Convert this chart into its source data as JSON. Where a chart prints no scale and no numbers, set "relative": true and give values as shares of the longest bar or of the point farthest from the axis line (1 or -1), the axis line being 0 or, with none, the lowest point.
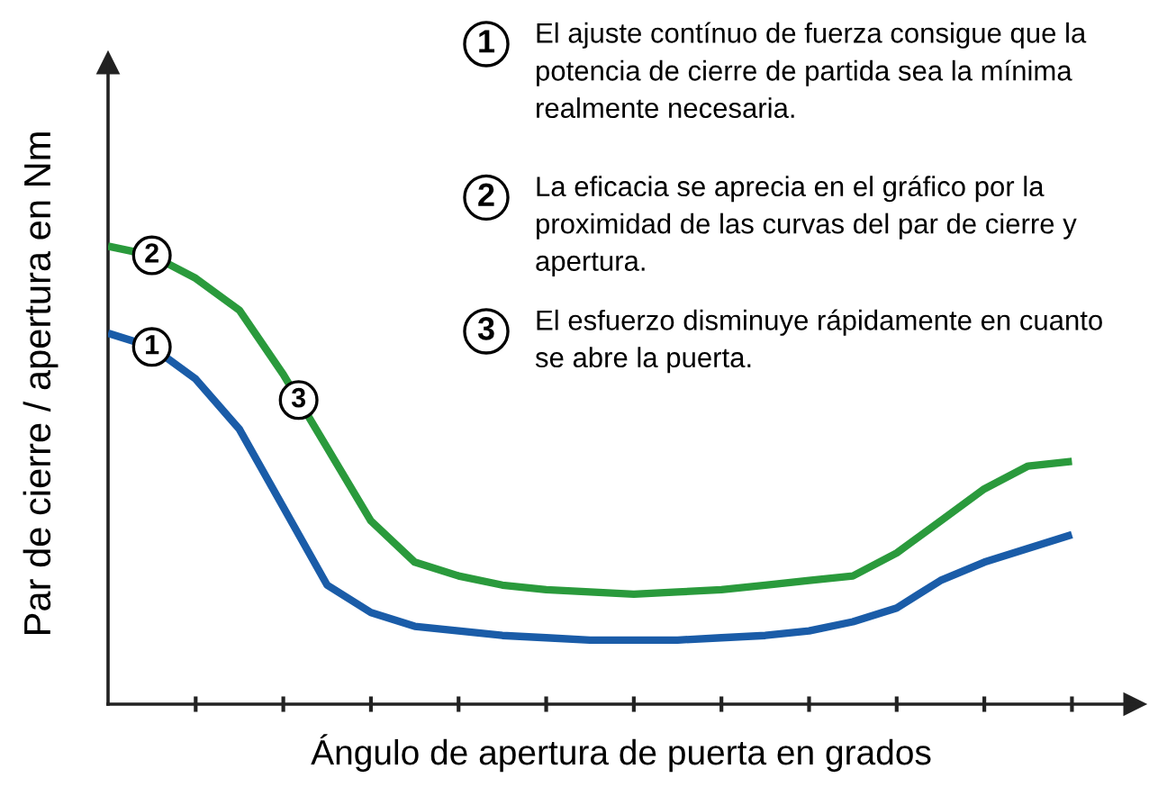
{
  "chart_data": {
    "type": "line",
    "relative": true,
    "xlabel": "Ángulo de apertura de puerta en grados",
    "ylabel": "Par de cierre / apertura en Nm",
    "categories": [
      null,
      null,
      null,
      null,
      null,
      null,
      null,
      null,
      null,
      null,
      null,
      null,
      null,
      null,
      null,
      null,
      null,
      null,
      null,
      null,
      null,
      null,
      null
    ],
    "series": [
      {
        "color": "#2a9a3c",
        "values": [
          1,
          0.98,
          0.93,
          0.86,
          0.72,
          0.56,
          0.4,
          0.31,
          0.28,
          0.26,
          0.25,
          0.245,
          0.24,
          0.245,
          0.25,
          0.26,
          0.27,
          0.28,
          0.33,
          0.4,
          0.47,
          0.52,
          0.53
        ]
      },
      {
        "color": "#1a5ca8",
        "values": [
          0.81,
          0.78,
          0.71,
          0.6,
          0.43,
          0.26,
          0.2,
          0.17,
          0.16,
          0.15,
          0.145,
          0.14,
          0.14,
          0.14,
          0.145,
          0.15,
          0.16,
          0.18,
          0.21,
          0.27,
          0.31,
          0.34,
          0.37
        ]
      }
    ],
    "marker": "none",
    "line_style": "solid",
    "annotations": [
      "1",
      "2",
      "3",
      "El ajuste contínuo de fuerza consigue que la\npotencia de cierre de partida sea la mínima\nrealmente necesaria.",
      "La eficacia se aprecia en el gráfico por la\nproximidad de las curvas del par de cierre y\napertura.",
      "El esfuerzo disminuye rápidamente en cuanto\nse abre la puerta."
    ]
  }
}
